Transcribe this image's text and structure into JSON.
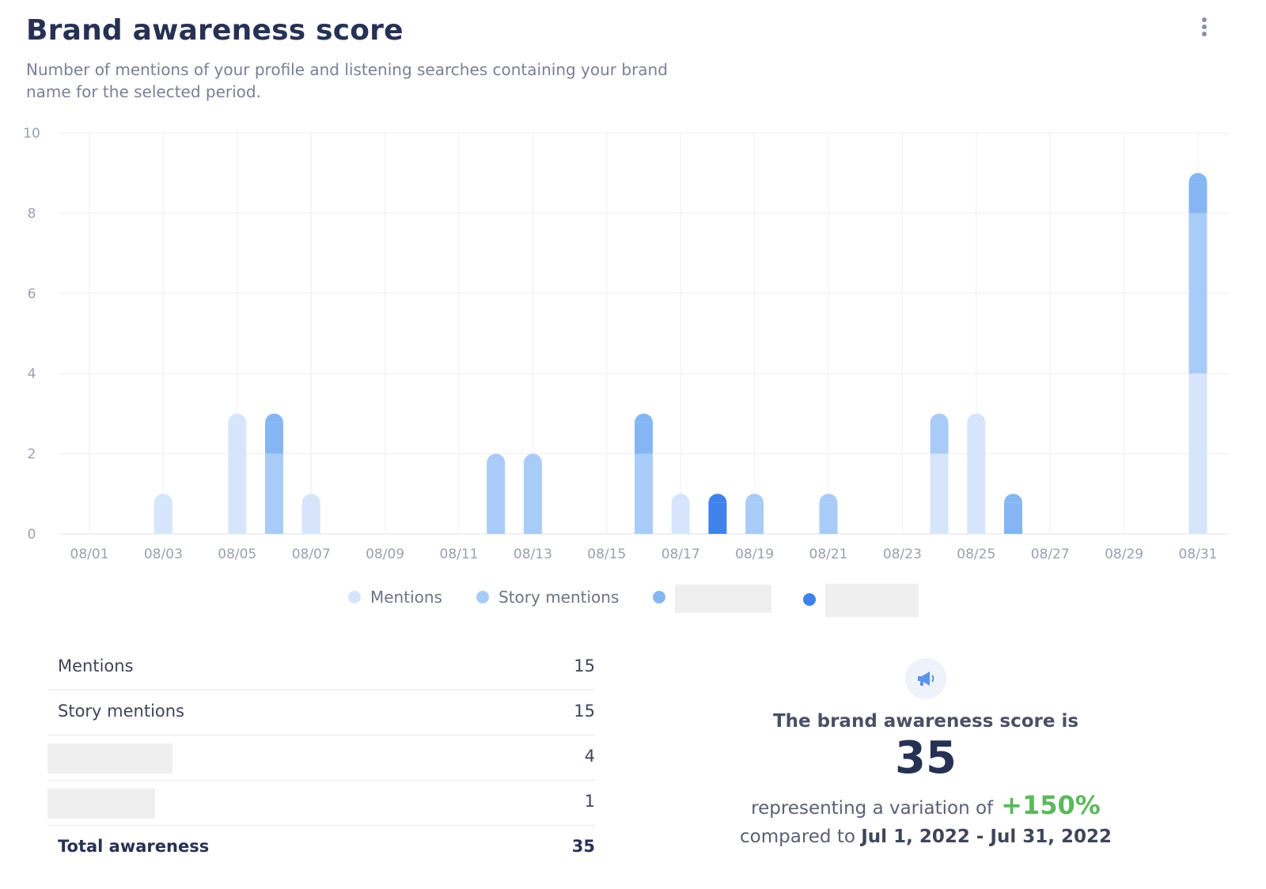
{
  "header": {
    "title": "Brand awareness score",
    "subtitle": "Number of mentions of your profile and listening searches containing your brand name for the selected period."
  },
  "chart_data": {
    "type": "bar",
    "stacked": true,
    "categories": [
      "08/01",
      "08/02",
      "08/03",
      "08/04",
      "08/05",
      "08/06",
      "08/07",
      "08/08",
      "08/09",
      "08/10",
      "08/11",
      "08/12",
      "08/13",
      "08/14",
      "08/15",
      "08/16",
      "08/17",
      "08/18",
      "08/19",
      "08/20",
      "08/21",
      "08/22",
      "08/23",
      "08/24",
      "08/25",
      "08/26",
      "08/27",
      "08/28",
      "08/29",
      "08/30",
      "08/31"
    ],
    "x_tick_labels": [
      "08/01",
      "08/03",
      "08/05",
      "08/07",
      "08/09",
      "08/11",
      "08/13",
      "08/15",
      "08/17",
      "08/19",
      "08/21",
      "08/23",
      "08/25",
      "08/27",
      "08/29",
      "08/31"
    ],
    "ylim": [
      0,
      10
    ],
    "y_ticks": [
      0,
      2,
      4,
      6,
      8,
      10
    ],
    "grid": true,
    "legend_position": "bottom",
    "series": [
      {
        "name": "Mentions",
        "color": "#d6e5fb",
        "values": [
          0,
          0,
          1,
          0,
          3,
          0,
          1,
          0,
          0,
          0,
          0,
          0,
          0,
          0,
          0,
          0,
          1,
          0,
          0,
          0,
          0,
          0,
          0,
          2,
          3,
          0,
          0,
          0,
          0,
          0,
          4
        ]
      },
      {
        "name": "Story mentions",
        "color": "#a9cbf7",
        "values": [
          0,
          0,
          0,
          0,
          0,
          2,
          0,
          0,
          0,
          0,
          0,
          2,
          2,
          0,
          0,
          2,
          0,
          0,
          1,
          0,
          1,
          0,
          0,
          1,
          0,
          0,
          0,
          0,
          0,
          0,
          4
        ]
      },
      {
        "name": "",
        "color": "#85b6f3",
        "values": [
          0,
          0,
          0,
          0,
          0,
          1,
          0,
          0,
          0,
          0,
          0,
          0,
          0,
          0,
          0,
          1,
          0,
          0,
          0,
          0,
          0,
          0,
          0,
          0,
          0,
          1,
          0,
          0,
          0,
          0,
          1
        ]
      },
      {
        "name": "",
        "color": "#3f82ec",
        "values": [
          0,
          0,
          0,
          0,
          0,
          0,
          0,
          0,
          0,
          0,
          0,
          0,
          0,
          0,
          0,
          0,
          0,
          1,
          0,
          0,
          0,
          0,
          0,
          0,
          0,
          0,
          0,
          0,
          0,
          0,
          0
        ]
      }
    ]
  },
  "legend": {
    "items": [
      {
        "label": "Mentions",
        "color": "#d6e5fb"
      },
      {
        "label": "Story mentions",
        "color": "#a9cbf7"
      },
      {
        "label": "",
        "color": "#85b6f3"
      },
      {
        "label": "",
        "color": "#3f82ec"
      }
    ]
  },
  "stats": {
    "rows": [
      {
        "label": "Mentions",
        "value": "15"
      },
      {
        "label": "Story mentions",
        "value": "15"
      },
      {
        "label": "",
        "value": "4"
      },
      {
        "label": "",
        "value": "1"
      }
    ],
    "total": {
      "label": "Total awareness",
      "value": "35"
    }
  },
  "summary": {
    "heading": "The brand awareness score is",
    "score": "35",
    "variation_text": "representing a variation of",
    "variation_value": "+150%",
    "compared_text": "compared to",
    "compared_period": "Jul 1, 2022 - Jul 31, 2022",
    "icon": "megaphone-icon",
    "variation_color": "#5cb85c"
  }
}
